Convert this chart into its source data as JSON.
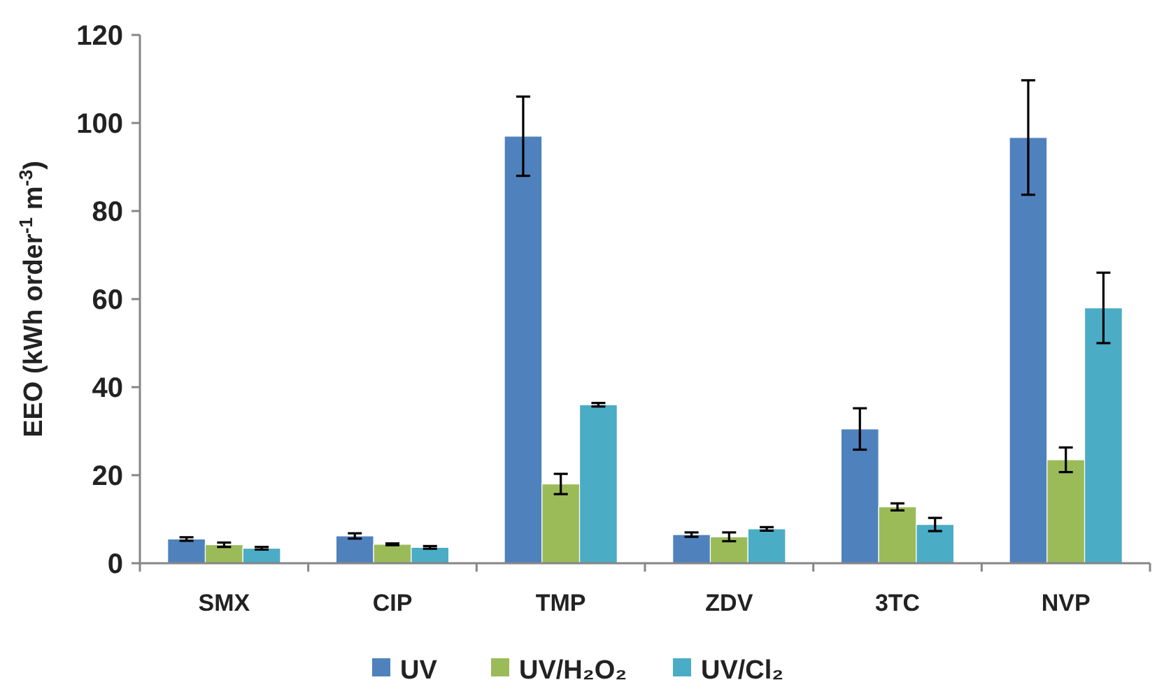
{
  "chart_data": {
    "type": "bar",
    "ylabel": "EEO (kWh order$^{-1}$ m$^{-3}$)",
    "categories": [
      "SMX",
      "CIP",
      "TMP",
      "ZDV",
      "3TC",
      "NVP"
    ],
    "series": [
      {
        "name": "UV",
        "color": "#4f81bd",
        "values": [
          5.5,
          6.2,
          97,
          6.5,
          30.5,
          96.7
        ],
        "errors": [
          0.4,
          0.6,
          9,
          0.5,
          4.7,
          13
        ]
      },
      {
        "name": "UV/H₂O₂",
        "color": "#9bbb59",
        "values": [
          4.2,
          4.3,
          18,
          6,
          12.8,
          23.5
        ],
        "errors": [
          0.5,
          0.2,
          2.3,
          1,
          0.8,
          2.8
        ]
      },
      {
        "name": "UV/Cl₂",
        "color": "#4bacc6",
        "values": [
          3.4,
          3.6,
          36,
          7.8,
          8.8,
          58
        ],
        "errors": [
          0.3,
          0.3,
          0.4,
          0.4,
          1.5,
          8
        ]
      }
    ],
    "ylim": [
      0,
      120
    ],
    "yticks": [
      0,
      20,
      40,
      60,
      80,
      100,
      120
    ],
    "grid": false,
    "legend": "bottom"
  }
}
